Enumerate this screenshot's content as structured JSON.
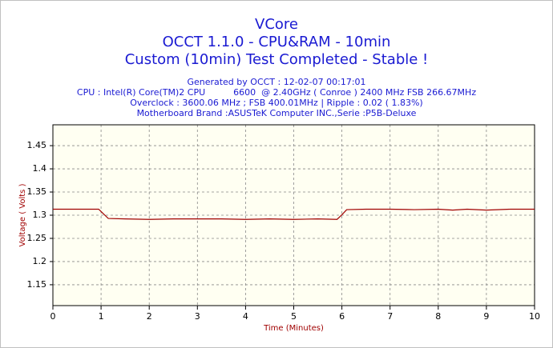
{
  "chart_data": {
    "type": "line",
    "title": [
      "VCore",
      "OCCT 1.1.0 - CPU&RAM - 10min",
      "Custom (10min) Test Completed - Stable !"
    ],
    "subtitle": [
      "Generated by OCCT : 12-02-07 00:17:01",
      "CPU : Intel(R) Core(TM)2 CPU          6600  @ 2.40GHz ( Conroe ) 2400 MHz FSB 266.67MHz",
      "Overclock : 3600.06 MHz ; FSB 400.01MHz | Ripple : 0.02 ( 1.83%)",
      "Motherboard Brand :ASUSTeK Computer INC.,Serie :P5B-Deluxe"
    ],
    "x_label": "Time (Minutes)",
    "y_label": "Voltage ( Volts )",
    "x": [
      0,
      0.5,
      0.95,
      1.05,
      1.15,
      1.5,
      2,
      2.5,
      3,
      3.5,
      4,
      4.5,
      5,
      5.5,
      5.9,
      6.0,
      6.1,
      6.5,
      7,
      7.5,
      8,
      8.3,
      8.6,
      9,
      9.5,
      10
    ],
    "series": [
      {
        "name": "VCore",
        "color": "#a00000",
        "values": [
          1.313,
          1.313,
          1.313,
          1.303,
          1.293,
          1.292,
          1.291,
          1.292,
          1.292,
          1.292,
          1.291,
          1.292,
          1.291,
          1.292,
          1.291,
          1.301,
          1.312,
          1.313,
          1.313,
          1.312,
          1.313,
          1.311,
          1.313,
          1.311,
          1.313,
          1.313
        ]
      }
    ],
    "xlim": [
      0,
      10
    ],
    "xticks": [
      0,
      1,
      2,
      3,
      4,
      5,
      6,
      7,
      8,
      9,
      10
    ],
    "ylim": [
      1.105,
      1.495
    ],
    "yticks": [
      1.15,
      1.2,
      1.25,
      1.3,
      1.35,
      1.4,
      1.45
    ],
    "grid": true
  }
}
